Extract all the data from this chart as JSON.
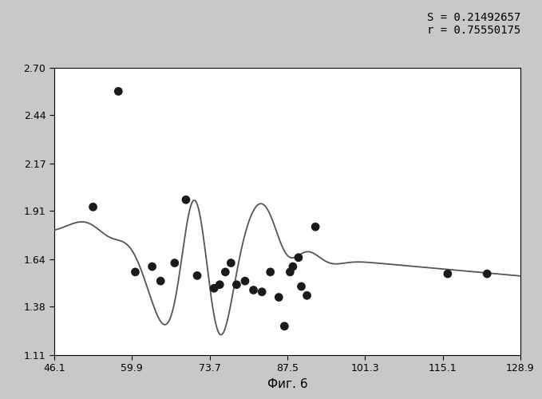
{
  "scatter_x": [
    53.0,
    57.5,
    60.5,
    63.5,
    65.0,
    67.5,
    69.5,
    71.5,
    74.5,
    75.5,
    76.5,
    77.5,
    78.5,
    80.0,
    81.5,
    83.0,
    84.5,
    86.0,
    87.0,
    88.0,
    88.5,
    89.5,
    90.0,
    91.0,
    92.5,
    116.0,
    123.0
  ],
  "scatter_y": [
    1.93,
    2.57,
    1.57,
    1.6,
    1.52,
    1.62,
    1.97,
    1.55,
    1.48,
    1.5,
    1.57,
    1.62,
    1.5,
    1.52,
    1.47,
    1.46,
    1.57,
    1.43,
    1.27,
    1.57,
    1.6,
    1.65,
    1.49,
    1.44,
    1.82,
    1.56,
    1.56
  ],
  "xlim": [
    46.1,
    128.9
  ],
  "ylim": [
    1.11,
    2.7
  ],
  "xticks": [
    46.1,
    59.9,
    73.7,
    87.5,
    101.3,
    115.1,
    128.9
  ],
  "yticks": [
    1.11,
    1.38,
    1.64,
    1.91,
    2.17,
    2.44,
    2.7
  ],
  "xlabel": "Фиг. 6",
  "annotation": "S = 0.21492657\nr = 0.75550175",
  "dot_color": "#1a1a1a",
  "line_color": "#555555",
  "plot_bg": "#ffffff",
  "figure_bg": "#c8c8c8"
}
